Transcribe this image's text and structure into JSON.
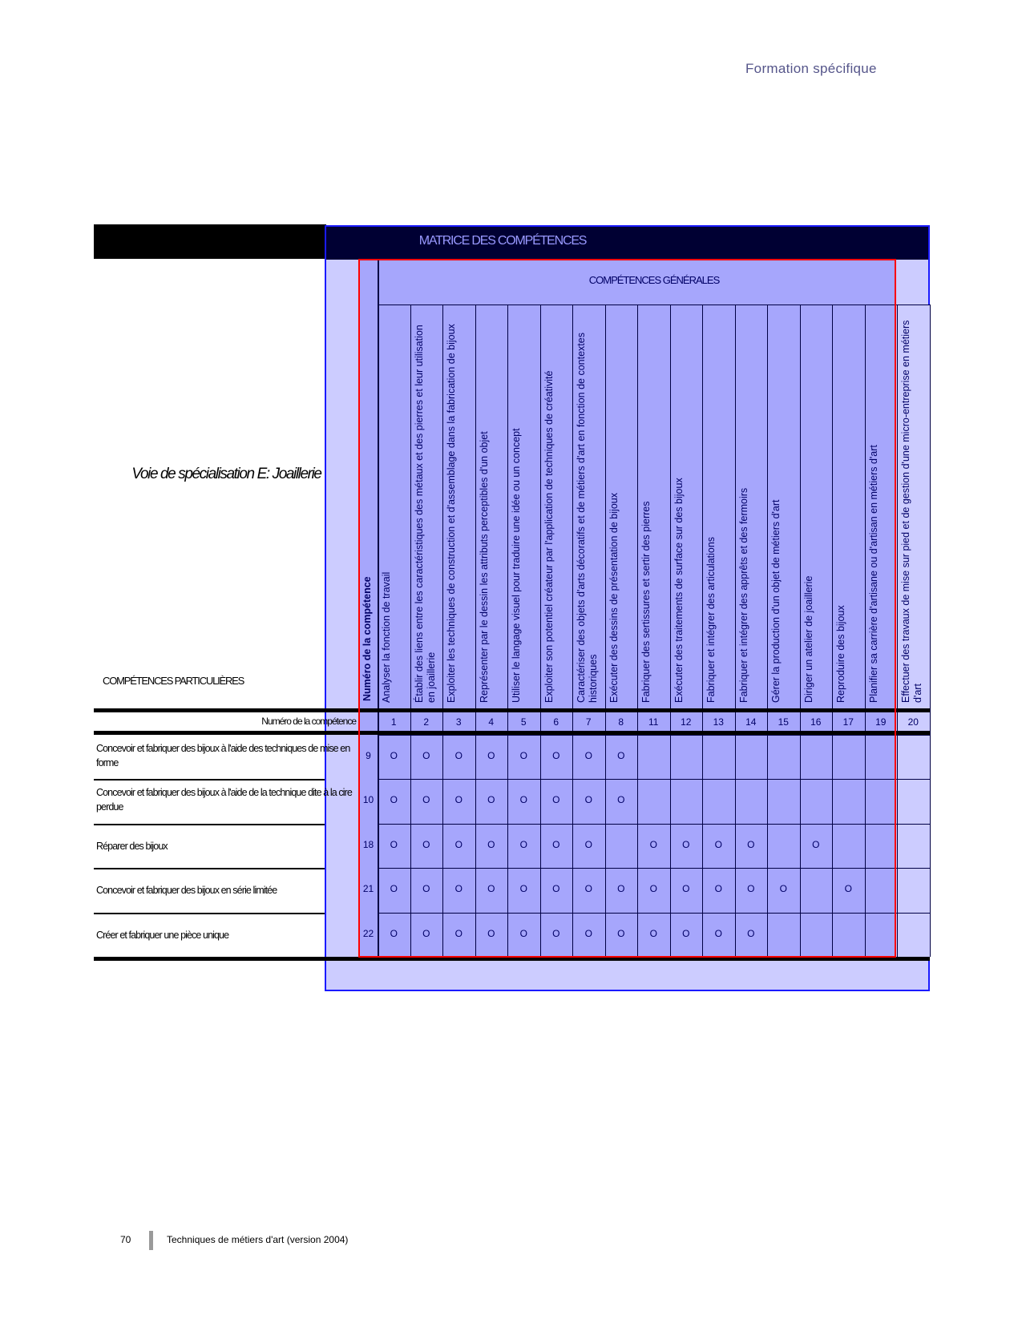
{
  "header": {
    "running_head": "Formation spécifique"
  },
  "matrix": {
    "title": "MATRICE DES COMPÉTENCES",
    "general_title": "COMPÉTENCES GÉNÉRALES",
    "specialisation": "Voie de spécialisation E: Joaillerie",
    "particular_title": "COMPÉTENCES PARTICULIÈRES",
    "number_header": "Numéro de la compétence",
    "number_row_label": "Numéro de la compétence",
    "mark_symbol": "O",
    "columns": [
      {
        "num": "1",
        "label": "Analyser la fonction de travail"
      },
      {
        "num": "2",
        "label": "Établir des liens entre les caractéristiques des métaux et des pierres et leur utilisation en joaillerie"
      },
      {
        "num": "3",
        "label": "Exploiter les techniques de construction et d'assemblage dans la fabrication de bijoux"
      },
      {
        "num": "4",
        "label": "Représenter par le dessin les attributs perceptibles d'un objet"
      },
      {
        "num": "5",
        "label": "Utiliser le langage visuel pour traduire une idée ou un concept"
      },
      {
        "num": "6",
        "label": "Exploiter son potentiel créateur par l'application de techniques de créativité"
      },
      {
        "num": "7",
        "label": "Caractériser des objets d'arts décoratifs et de métiers d'art en fonction de contextes historiques"
      },
      {
        "num": "8",
        "label": "Exécuter des dessins de présentation de bijoux"
      },
      {
        "num": "11",
        "label": "Fabriquer des sertissures et sertir des pierres"
      },
      {
        "num": "12",
        "label": "Exécuter des traitements de surface sur des bijoux"
      },
      {
        "num": "13",
        "label": "Fabriquer et intégrer des articulations"
      },
      {
        "num": "14",
        "label": "Fabriquer et intégrer des apprêts et des fermoirs"
      },
      {
        "num": "15",
        "label": "Gérer la production d'un objet de métiers d'art"
      },
      {
        "num": "16",
        "label": "Diriger un atelier de joaillerie"
      },
      {
        "num": "17",
        "label": "Reproduire des bijoux"
      },
      {
        "num": "19",
        "label": "Planifier sa carrière d'artisane ou d'artisan en métiers d'art"
      },
      {
        "num": "20",
        "label": "Effectuer des travaux de mise sur pied et de gestion d'une micro-entreprise en métiers d'art"
      }
    ],
    "rows": [
      {
        "num": "9",
        "label": "Concevoir et fabriquer des bijoux à l'aide des techniques de mise en forme",
        "marks": [
          "1",
          "2",
          "3",
          "4",
          "5",
          "6",
          "7",
          "8"
        ]
      },
      {
        "num": "10",
        "label": "Concevoir et fabriquer des bijoux à l'aide de la technique dite à la cire perdue",
        "marks": [
          "1",
          "2",
          "3",
          "4",
          "5",
          "6",
          "7",
          "8"
        ]
      },
      {
        "num": "18",
        "label": "Réparer des bijoux",
        "marks": [
          "1",
          "2",
          "3",
          "4",
          "5",
          "6",
          "7",
          "11",
          "12",
          "13",
          "14",
          "16"
        ]
      },
      {
        "num": "21",
        "label": "Concevoir et fabriquer des bijoux en série limitée",
        "marks": [
          "1",
          "2",
          "3",
          "4",
          "5",
          "6",
          "7",
          "8",
          "11",
          "12",
          "13",
          "14",
          "15",
          "17"
        ]
      },
      {
        "num": "22",
        "label": "Créer et fabriquer une pièce unique",
        "marks": [
          "1",
          "2",
          "3",
          "4",
          "5",
          "6",
          "7",
          "8",
          "11",
          "12",
          "13",
          "14"
        ]
      }
    ],
    "colors": {
      "header_bg": "#000033",
      "grid_bg": "#a6a6fc",
      "light_bg": "#ccccff",
      "frame": "#ff0000"
    }
  },
  "footer": {
    "page_number": "70",
    "text": "Techniques de métiers d'art (version 2004)"
  }
}
